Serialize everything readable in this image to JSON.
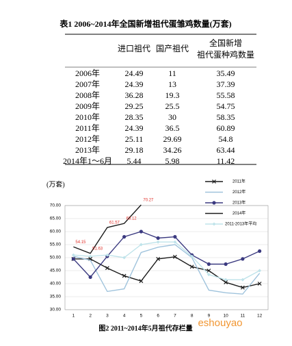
{
  "table": {
    "title": "表1   2006~2014年全国新增祖代蛋雏鸡数量(万套)",
    "header": [
      "进口祖代",
      "国产祖代",
      "全国新增",
      "祖代蛋种鸡数量"
    ],
    "rows": [
      [
        "2006年",
        "24.49",
        "11",
        "35.49"
      ],
      [
        "2007年",
        "24.39",
        "13",
        "37.39"
      ],
      [
        "2008年",
        "36.28",
        "19.3",
        "55.58"
      ],
      [
        "2009年",
        "29.25",
        "25.5",
        "54.75"
      ],
      [
        "2010年",
        "28.35",
        "30",
        "58.35"
      ],
      [
        "2011年",
        "24.39",
        "36.5",
        "60.89"
      ],
      [
        "2012年",
        "25.11",
        "29.69",
        "54.8"
      ],
      [
        "2013年",
        "29.18",
        "34.26",
        "63.44"
      ],
      [
        "2014年1～6月",
        "5.44",
        "5.98",
        "11.42"
      ]
    ]
  },
  "chart_data": {
    "type": "line",
    "y_label": "(万套)",
    "caption": "图2   2011~2014年5月祖代存栏量",
    "categories": [
      "1",
      "2",
      "3",
      "4",
      "5",
      "6",
      "7",
      "8",
      "9",
      "10",
      "11",
      "12"
    ],
    "ylim": [
      30,
      70
    ],
    "yticks": [
      {
        "value": 30,
        "label": "30.00"
      },
      {
        "value": 35,
        "label": "35.00"
      },
      {
        "value": 40,
        "label": "40.00"
      },
      {
        "value": 45,
        "label": "45.00"
      },
      {
        "value": 50,
        "label": "50.00"
      },
      {
        "value": 55,
        "label": "55.00"
      },
      {
        "value": 60,
        "label": "60.00"
      },
      {
        "value": 65,
        "label": "65.00"
      },
      {
        "value": 70,
        "label": "70.00"
      }
    ],
    "grid": true,
    "series": [
      {
        "name": "2011年",
        "color": "#1a1a1a",
        "marker": "x",
        "values": [
          49.5,
          49.5,
          46,
          43,
          41,
          49.5,
          50.3,
          46.5,
          45,
          40.5,
          38.5,
          40
        ]
      },
      {
        "name": "2012年",
        "color": "#9fc3dc",
        "marker": "none",
        "values": [
          50.5,
          49,
          37,
          38,
          52,
          54,
          55,
          50,
          37.5,
          36.5,
          36,
          44
        ]
      },
      {
        "name": "2013年",
        "color": "#3b3a80",
        "marker": "circle",
        "values": [
          49.5,
          42.5,
          50.5,
          58,
          60,
          57.5,
          58,
          51,
          47.5,
          47.5,
          49.5,
          52.5
        ]
      },
      {
        "name": "2014年",
        "color": "#1a1a1a",
        "marker": "none",
        "values": [
          54.15,
          51.63,
          61.57,
          63.12,
          70.27,
          null,
          null,
          null,
          null,
          null,
          null,
          null
        ],
        "labels_color": "#e0302a",
        "show_labels": true
      },
      {
        "name": "2011-2013年平均",
        "color": "#bfe3ea",
        "marker": "diamond",
        "values": [
          51,
          50.5,
          51,
          50,
          55,
          56,
          56,
          50.5,
          43.5,
          41.5,
          41.5,
          45
        ]
      }
    ],
    "watermark": "eshouyao"
  }
}
